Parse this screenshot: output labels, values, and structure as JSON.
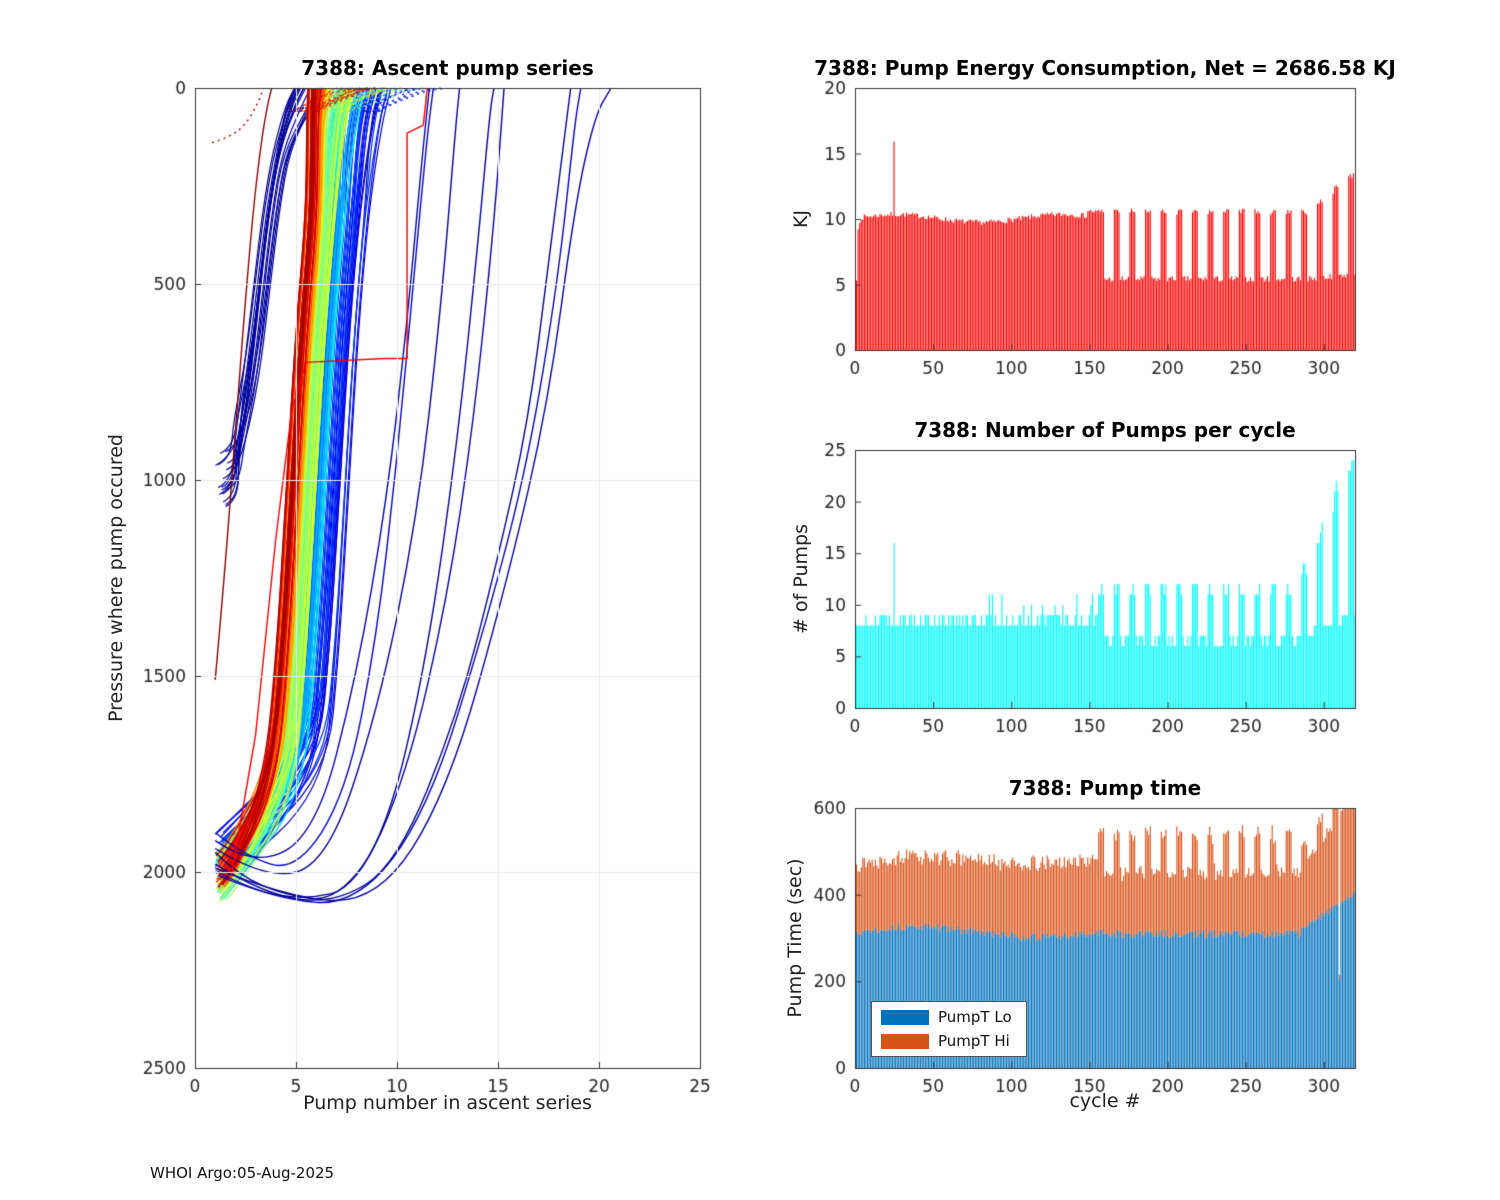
{
  "footer": "WHOI Argo:05-Aug-2025",
  "colors": {
    "energy_bar": "#ff0000",
    "pumps_bar": "#00ffff",
    "pump_lo": "#0072BD",
    "pump_hi": "#D95319",
    "axis": "#333333",
    "tick_text": "#262626",
    "grid": "#e8e8e8"
  },
  "chart_data": [
    {
      "id": "ascent",
      "type": "line",
      "title": "7388: Ascent pump series",
      "xlabel": "Pump number in ascent series",
      "ylabel": "Pressure where pump occured",
      "xlim": [
        0,
        25
      ],
      "ylim": [
        0,
        2500
      ],
      "y_reversed": true,
      "xticks": [
        0,
        5,
        10,
        15,
        20,
        25
      ],
      "yticks": [
        0,
        500,
        1000,
        1500,
        2000,
        2500
      ],
      "grid": true,
      "colormap": "jet",
      "note": "About 320 ascent pump profiles colored by cycle number (jet colormap: early=dark blue, late=dark red). Most start near 1950-2080 dbar and surface after 5-10 pumps; early navy cycles include shallow ~1000 dbar profiles and deep outliers needing 12-21 pumps.",
      "bands": [
        {
          "name": "early-navy-shallow",
          "count": 16,
          "t": [
            0.0,
            0.045
          ],
          "y0": [
            920,
            1070
          ],
          "m": [
            2.9,
            3.9
          ],
          "top": [
            4.7,
            6.7
          ]
        },
        {
          "name": "blue",
          "count": 30,
          "t": [
            0.05,
            0.2
          ],
          "y0": [
            1880,
            2060
          ],
          "m": [
            6.1,
            7.7
          ],
          "top": [
            7.6,
            9.7
          ]
        },
        {
          "name": "cyan",
          "count": 30,
          "t": [
            0.2,
            0.38
          ],
          "y0": [
            1950,
            2070
          ],
          "m": [
            5.7,
            6.5
          ],
          "top": [
            6.9,
            8.5
          ]
        },
        {
          "name": "green",
          "count": 45,
          "t": [
            0.38,
            0.6
          ],
          "y0": [
            1950,
            2075
          ],
          "m": [
            5.1,
            6.0
          ],
          "top": [
            6.1,
            7.9
          ]
        },
        {
          "name": "yellow",
          "count": 22,
          "t": [
            0.6,
            0.72
          ],
          "y0": [
            1950,
            2050
          ],
          "m": [
            4.85,
            5.4
          ],
          "top": [
            5.6,
            6.9
          ]
        },
        {
          "name": "orange",
          "count": 20,
          "t": [
            0.72,
            0.82
          ],
          "y0": [
            1950,
            2040
          ],
          "m": [
            4.6,
            5.15
          ],
          "top": [
            5.3,
            6.4
          ]
        },
        {
          "name": "red",
          "count": 26,
          "t": [
            0.82,
            0.97
          ],
          "y0": [
            1950,
            2040
          ],
          "m": [
            4.5,
            5.1
          ],
          "top": [
            5.0,
            6.2
          ]
        }
      ],
      "outliers": [
        {
          "t": 0.02,
          "pts": [
            [
              1,
              1950
            ],
            [
              2.2,
              2010
            ],
            [
              4.5,
              2060
            ],
            [
              7,
              2075
            ],
            [
              9.5,
              1900
            ],
            [
              11.5,
              1450
            ],
            [
              13,
              900
            ],
            [
              14,
              400
            ],
            [
              14.6,
              60
            ],
            [
              14.8,
              0
            ]
          ]
        },
        {
          "t": 0.03,
          "pts": [
            [
              1.1,
              2000
            ],
            [
              3,
              2050
            ],
            [
              5.5,
              2070
            ],
            [
              8,
              2040
            ],
            [
              10.5,
              1750
            ],
            [
              12.5,
              1300
            ],
            [
              13.8,
              850
            ],
            [
              14.8,
              350
            ],
            [
              15.3,
              0
            ]
          ]
        },
        {
          "t": 0.01,
          "pts": [
            [
              1,
              1980
            ],
            [
              3.5,
              2060
            ],
            [
              7,
              2080
            ],
            [
              10,
              1980
            ],
            [
              13,
              1600
            ],
            [
              15,
              1200
            ],
            [
              16.5,
              850
            ],
            [
              17.5,
              450
            ],
            [
              18.3,
              120
            ],
            [
              18.6,
              0
            ]
          ]
        },
        {
          "t": 0.05,
          "pts": [
            [
              1.2,
              2010
            ],
            [
              4,
              2070
            ],
            [
              8,
              2085
            ],
            [
              11.5,
              1850
            ],
            [
              14.5,
              1350
            ],
            [
              16.5,
              950
            ],
            [
              18,
              480
            ],
            [
              18.8,
              90
            ],
            [
              19.1,
              0
            ]
          ]
        },
        {
          "t": 0.03,
          "pts": [
            [
              1,
              1990
            ],
            [
              4.5,
              2065
            ],
            [
              9,
              2080
            ],
            [
              12.5,
              1800
            ],
            [
              15.5,
              1250
            ],
            [
              17.5,
              800
            ],
            [
              18.8,
              300
            ],
            [
              19.8,
              70
            ],
            [
              20.6,
              0
            ]
          ]
        },
        {
          "t": 0.06,
          "pts": [
            [
              1,
              1900
            ],
            [
              2.5,
              1960
            ],
            [
              5,
              2000
            ],
            [
              7.5,
              1800
            ],
            [
              9,
              1400
            ],
            [
              10,
              950
            ],
            [
              10.8,
              500
            ],
            [
              11.5,
              120
            ],
            [
              11.8,
              0
            ]
          ]
        },
        {
          "t": 0.04,
          "pts": [
            [
              1,
              1920
            ],
            [
              3,
              1990
            ],
            [
              6,
              1900
            ],
            [
              8,
              1500
            ],
            [
              9.5,
              1050
            ],
            [
              10.5,
              600
            ],
            [
              11.2,
              200
            ],
            [
              11.6,
              0
            ]
          ]
        },
        {
          "t": 0.02,
          "pts": [
            [
              1,
              1940
            ],
            [
              3.5,
              2020
            ],
            [
              6.5,
              1980
            ],
            [
              9,
              1600
            ],
            [
              11,
              1100
            ],
            [
              12.2,
              550
            ],
            [
              12.9,
              100
            ],
            [
              13.1,
              0
            ]
          ]
        },
        {
          "t": 0.88,
          "sharp": true,
          "pts": [
            [
              1.8,
              2010
            ],
            [
              3,
              1650
            ],
            [
              4,
              1150
            ],
            [
              4.8,
              820
            ],
            [
              5.5,
              700
            ],
            [
              9.4,
              690
            ],
            [
              10.5,
              690
            ],
            [
              10.5,
              115
            ],
            [
              11.3,
              95
            ],
            [
              11.5,
              0
            ]
          ]
        },
        {
          "t": 0.99,
          "pts": [
            [
              1,
              1510
            ],
            [
              1.4,
              1280
            ],
            [
              1.9,
              950
            ],
            [
              2.4,
              600
            ],
            [
              2.9,
              300
            ],
            [
              3.3,
              130
            ],
            [
              3.6,
              40
            ],
            [
              3.8,
              0
            ]
          ]
        },
        {
          "t": 0.97,
          "dash": true,
          "pts": [
            [
              0.85,
              140
            ],
            [
              1.7,
              125
            ],
            [
              2.5,
              95
            ],
            [
              3.1,
              40
            ],
            [
              3.4,
              0
            ]
          ]
        }
      ]
    },
    {
      "id": "energy",
      "type": "bar",
      "title": "7388: Pump Energy Consumption,  Net = 2686.58 KJ",
      "net_kj": 2686.58,
      "ylabel": "KJ",
      "xlim": [
        0,
        320
      ],
      "ylim": [
        0,
        20
      ],
      "xticks": [
        0,
        50,
        100,
        150,
        200,
        250,
        300
      ],
      "yticks": [
        0,
        5,
        10,
        15,
        20
      ],
      "bar_color": "#ff0000",
      "pattern": {
        "n": 320,
        "first_values": [
          5.3,
          9.2,
          9.7
        ],
        "phase1_end": 155,
        "phase1_level": 10.0,
        "phase1_step_up": 0.4,
        "spike_cycle": 25,
        "spike_value": 15.9,
        "phase2_low": 5.3,
        "phase2_high": 10.5,
        "tail_start": 290,
        "tail_end_value": 13.0
      }
    },
    {
      "id": "pumps",
      "type": "bar",
      "title": "7388: Number of Pumps per cycle",
      "ylabel": "# of Pumps",
      "xlim": [
        0,
        320
      ],
      "ylim": [
        0,
        25
      ],
      "xticks": [
        0,
        50,
        100,
        150,
        200,
        250,
        300
      ],
      "yticks": [
        0,
        5,
        10,
        15,
        20,
        25
      ],
      "bar_color": "#00ffff",
      "pattern": {
        "n": 320,
        "phase1_end": 155,
        "phase1_low": 8,
        "phase1_tall": 11,
        "spike_cycle": 25,
        "spike_value": 16,
        "phase2_low": 6,
        "phase2_tall": 12,
        "tail_start": 285,
        "tail_max": 24
      }
    },
    {
      "id": "time",
      "type": "stacked-bar",
      "title": "7388: Pump time",
      "xlabel": "cycle #",
      "ylabel": "Pump Time (sec)",
      "xlim": [
        0,
        320
      ],
      "ylim": [
        0,
        600
      ],
      "xticks": [
        0,
        50,
        100,
        150,
        200,
        250,
        300
      ],
      "yticks": [
        0,
        200,
        400,
        600
      ],
      "legend_position": "lower-left",
      "series": [
        {
          "name": "PumpT Lo",
          "color": "#0072BD"
        },
        {
          "name": "PumpT Hi",
          "color": "#D95319"
        }
      ],
      "pattern": {
        "n": 320,
        "lo_level": 310,
        "total_phase1": 455,
        "total_phase2": 440,
        "spike_total": 520,
        "tail_total": 545,
        "tail_spike": 615,
        "dip_cycle": 310,
        "dip_total": 215
      }
    }
  ]
}
